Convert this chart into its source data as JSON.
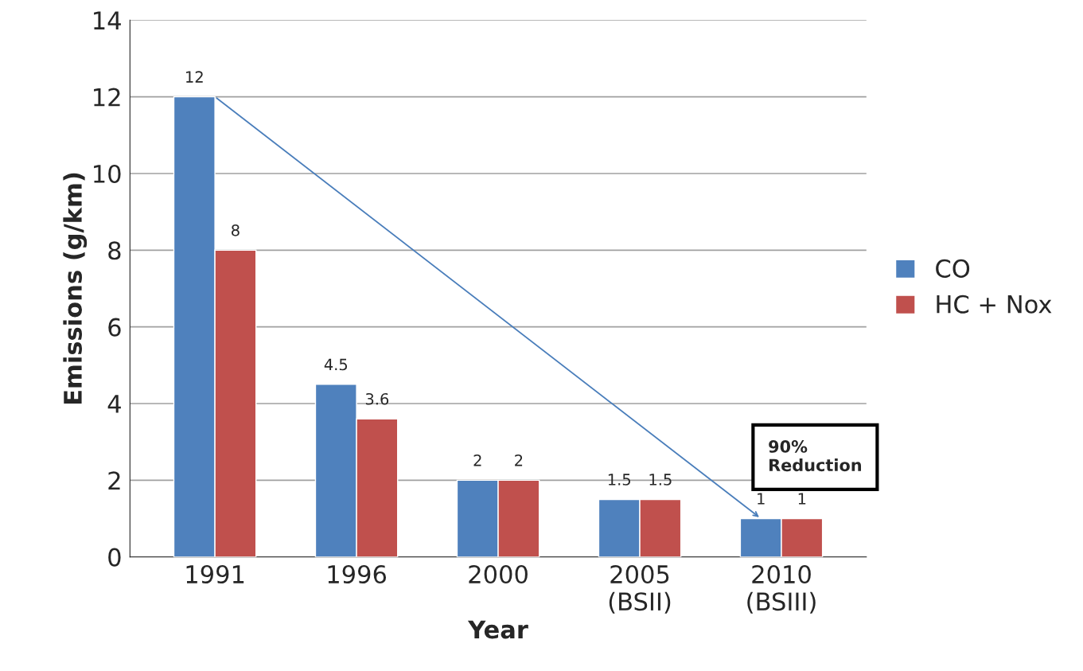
{
  "chart_data": {
    "type": "bar",
    "xlabel": "Year",
    "ylabel": "Emissions (g/km)",
    "categories": [
      "1991",
      "1996",
      "2000",
      "2005\n(BSII)",
      "2010\n(BSIII)"
    ],
    "series": [
      {
        "name": "CO",
        "color": "#4f81bd",
        "values": [
          12,
          4.5,
          2,
          1.5,
          1
        ]
      },
      {
        "name": "HC + Nox",
        "color": "#c0504d",
        "values": [
          8,
          3.6,
          2,
          1.5,
          1
        ]
      }
    ],
    "ylim": [
      0,
      14
    ],
    "yticks": [
      0,
      2,
      4,
      6,
      8,
      10,
      12,
      14
    ],
    "grid": "y",
    "legend": "right",
    "data_labels": true,
    "annotations": [
      {
        "text": "90%\nReduction",
        "x": "2010\n(BSIII)",
        "y": 1
      }
    ]
  }
}
